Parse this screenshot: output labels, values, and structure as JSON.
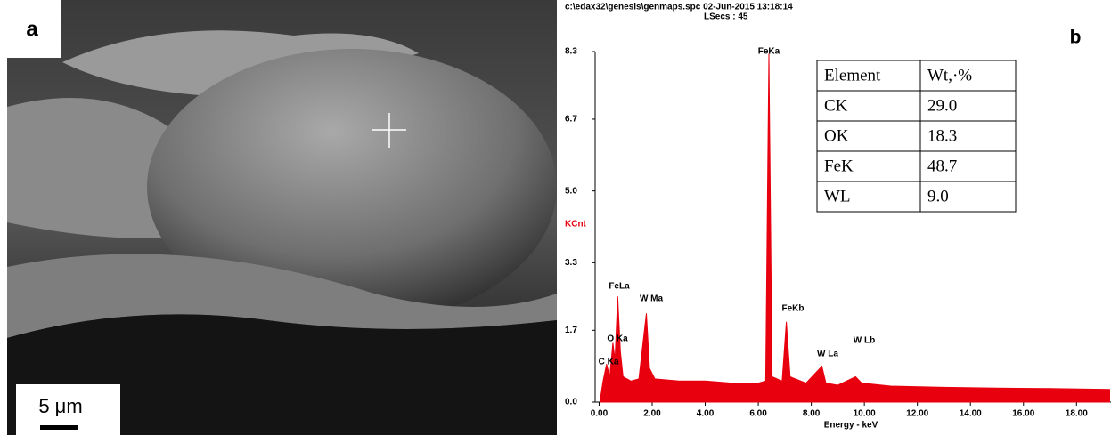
{
  "panel_a": {
    "label": "a",
    "scale_bar": "5 μm"
  },
  "chart_data": {
    "type": "area",
    "title": "c:\\edax32\\genesis\\genmaps.spc  02-Jun-2015 13:18:14",
    "subtitle": "LSecs : 45",
    "panel_label": "b",
    "y_label": "KCnt",
    "x_label": "Energy - keV",
    "color": "#e8000f",
    "x": [
      0.05,
      0.15,
      0.28,
      0.4,
      0.52,
      0.6,
      0.7,
      0.8,
      0.9,
      1.2,
      1.5,
      1.78,
      1.9,
      2.1,
      3.0,
      4.0,
      5.0,
      6.0,
      6.28,
      6.4,
      6.52,
      6.9,
      7.06,
      7.2,
      7.8,
      8.4,
      8.55,
      9.0,
      9.67,
      9.9,
      11.0,
      13.0,
      15.0,
      17.0,
      19.25
    ],
    "values": [
      0.1,
      0.5,
      0.9,
      0.6,
      1.4,
      1.0,
      2.5,
      1.2,
      0.6,
      0.5,
      0.55,
      2.1,
      0.8,
      0.55,
      0.5,
      0.5,
      0.45,
      0.45,
      0.5,
      8.25,
      0.6,
      0.5,
      1.9,
      0.6,
      0.45,
      0.85,
      0.45,
      0.4,
      0.6,
      0.45,
      0.38,
      0.35,
      0.33,
      0.32,
      0.3
    ],
    "xlim": [
      -0.15,
      19.3
    ],
    "ylim": [
      0,
      8.3
    ],
    "xticks": [
      {
        "value": 0,
        "label": "0.00"
      },
      {
        "value": 2,
        "label": "2.00"
      },
      {
        "value": 4,
        "label": "4.00"
      },
      {
        "value": 6,
        "label": "6.00"
      },
      {
        "value": 8,
        "label": "8.00"
      },
      {
        "value": 10,
        "label": "10.00"
      },
      {
        "value": 12,
        "label": "12.00"
      },
      {
        "value": 14,
        "label": "14.00"
      },
      {
        "value": 16,
        "label": "16.00"
      },
      {
        "value": 18,
        "label": "18.00"
      }
    ],
    "yticks": [
      {
        "value": 0,
        "label": "0.0"
      },
      1.7,
      3.3,
      {
        "value": 5,
        "label": "5.0"
      },
      6.7,
      8.3
    ],
    "annotations": [
      "FeKa",
      "FeLa",
      "W Ma",
      "FeKb",
      "O Ka",
      "C Ka",
      "W La",
      "W Lb"
    ],
    "table": {
      "header": [
        "Element",
        "Wt,·%"
      ],
      "rows": [
        [
          "CK",
          "29.0"
        ],
        [
          "OK",
          "18.3"
        ],
        [
          "FeK",
          "48.7"
        ],
        [
          "WL",
          "9.0"
        ]
      ]
    }
  }
}
